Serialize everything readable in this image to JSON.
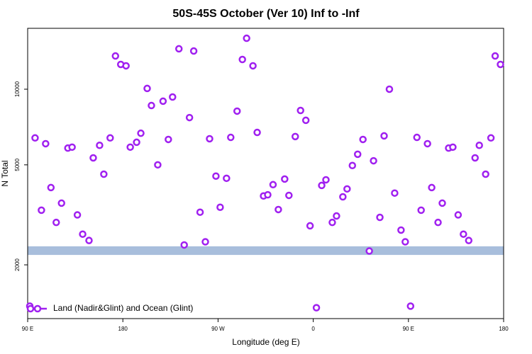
{
  "chart_data": {
    "type": "scatter",
    "title": "50S-45S October (Ver 10)   Inf to -Inf",
    "x_label": "Longitude (deg E)",
    "y_label": "N Total",
    "xlim": [
      90,
      540
    ],
    "xticks": [
      {
        "value": 90,
        "label": "90 E"
      },
      180,
      {
        "value": 270,
        "label": "90 W"
      },
      {
        "value": 360,
        "label": "0"
      },
      {
        "value": 450,
        "label": "90 E"
      },
      {
        "value": 540,
        "label": "180"
      }
    ],
    "ylim": [
      1222,
      17470
    ],
    "yticks": [
      2000,
      5000,
      10000
    ],
    "log_y": true,
    "band": [
      2190,
      2370
    ],
    "band_color": "#a8bedc",
    "legend": "bottom-left",
    "x": [
      92,
      97,
      103,
      107,
      112,
      117,
      122,
      128,
      132,
      137,
      142,
      148,
      152,
      158,
      162,
      168,
      173,
      178,
      183,
      187,
      193,
      197,
      203,
      207,
      213,
      218,
      223,
      227,
      233,
      238,
      243,
      247,
      253,
      258,
      262,
      268,
      272,
      278,
      282,
      288,
      293,
      297,
      303,
      307,
      313,
      317,
      322,
      327,
      333,
      337,
      343,
      348,
      353,
      357,
      363,
      368,
      372,
      378,
      382,
      388,
      392,
      397,
      402,
      407,
      413,
      417,
      423,
      427,
      432,
      437,
      443,
      447,
      452,
      458,
      462,
      468,
      472,
      478,
      482,
      488,
      492,
      497,
      502,
      507,
      513,
      517,
      523,
      528,
      532,
      537
    ],
    "series": [
      {
        "name": "Land (Nadir&Glint) and Ocean (Glint)",
        "color": "#a020f0",
        "values": [
          1370,
          6400,
          3300,
          6070,
          4060,
          2950,
          3520,
          5830,
          5880,
          3160,
          2650,
          2500,
          5330,
          5980,
          4590,
          6400,
          13560,
          12550,
          12390,
          5880,
          6150,
          6680,
          10070,
          8610,
          5000,
          8960,
          6310,
          9310,
          14480,
          2400,
          7710,
          14190,
          3240,
          2470,
          6350,
          4510,
          3390,
          4420,
          6430,
          8180,
          13130,
          15950,
          12390,
          6730,
          3760,
          3800,
          4170,
          3320,
          4390,
          3780,
          6480,
          8230,
          7520,
          2860,
          1350,
          4140,
          4360,
          2950,
          3130,
          3730,
          4010,
          4970,
          5510,
          6310,
          2270,
          5190,
          3090,
          6520,
          10000,
          3860,
          2750,
          2470,
          1370,
          6430,
          3300,
          6070,
          4060,
          2950,
          3520,
          5830,
          5880,
          3160,
          2650,
          2500,
          5330,
          5980,
          4590,
          6400,
          13560,
          12550
        ]
      }
    ]
  }
}
